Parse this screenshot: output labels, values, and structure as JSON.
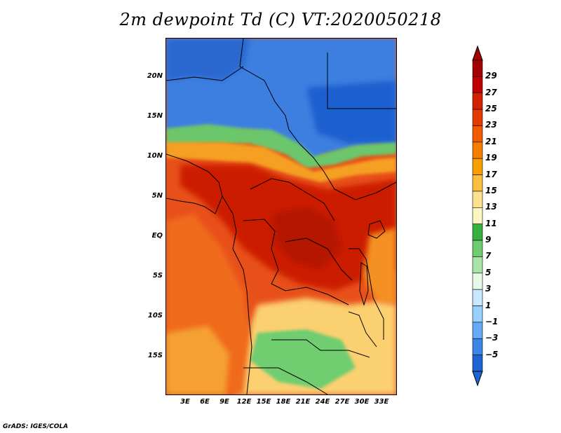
{
  "title": "2m dewpoint Td (C) VT:2020050218",
  "credit": "GrADS: IGES/COLA",
  "latitude_labels": [
    "20N",
    "15N",
    "10N",
    "5N",
    "EQ",
    "5S",
    "10S",
    "15S"
  ],
  "longitude_labels": [
    "3E",
    "6E",
    "9E",
    "12E",
    "15E",
    "18E",
    "21E",
    "24E",
    "27E",
    "30E",
    "33E"
  ],
  "colorbar": {
    "labels": [
      "29",
      "27",
      "25",
      "23",
      "21",
      "19",
      "17",
      "15",
      "13",
      "11",
      "9",
      "7",
      "5",
      "3",
      "1",
      "−1",
      "−3",
      "−5"
    ],
    "colors": [
      "#a50000",
      "#c00000",
      "#d52000",
      "#e43c00",
      "#f05a00",
      "#f57d00",
      "#f9a000",
      "#fcc040",
      "#fde090",
      "#fdf6c0",
      "#38b040",
      "#70cc70",
      "#a8e4a8",
      "#e6fae6",
      "#c8e8ff",
      "#96d0ff",
      "#64aaf5",
      "#3c87e6",
      "#1e64d2"
    ]
  },
  "map": {
    "region": "Central Africa, 0E–35E, 20S–25N",
    "variable": "2m dewpoint (C)"
  }
}
